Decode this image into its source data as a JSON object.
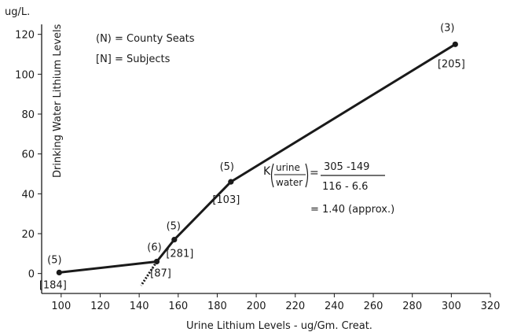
{
  "chart_data": {
    "type": "line",
    "title": "",
    "xlabel": "Urine Lithium Levels - ug/Gm. Creat.",
    "ylabel": "Drinking Water Lithium Levels",
    "y_unit": "ug/L.",
    "xlim": [
      90,
      320
    ],
    "ylim": [
      -10,
      125
    ],
    "x_ticks": [
      100,
      120,
      140,
      160,
      180,
      200,
      220,
      240,
      260,
      280,
      300,
      320
    ],
    "y_ticks": [
      0,
      20,
      40,
      60,
      80,
      100,
      120
    ],
    "grid": false,
    "series": [
      {
        "points": [
          {
            "x": 99,
            "y": 0.5,
            "county_seats": "(5)",
            "subjects": "[184]"
          },
          {
            "x": 149,
            "y": 6,
            "county_seats": "(6)",
            "subjects": "[87]"
          },
          {
            "x": 158,
            "y": 17,
            "county_seats": "(5)",
            "subjects": "[281]"
          },
          {
            "x": 187,
            "y": 46,
            "county_seats": "(5)",
            "subjects": "[103]"
          },
          {
            "x": 302,
            "y": 115,
            "county_seats": "(3)",
            "subjects": "[205]"
          }
        ]
      }
    ],
    "extrapolation": [
      {
        "x": 149,
        "y": 6
      },
      {
        "x": 141,
        "y": -6
      }
    ],
    "legend": {
      "placement": "top-left",
      "items": [
        "(N) = County Seats",
        "[N] = Subjects"
      ]
    },
    "annotation": {
      "k_prefix": "K",
      "k_fraction_top": "urine",
      "k_fraction_bottom": "water",
      "eq": "=",
      "numerator": "305 -149",
      "denominator": "116 - 6.6",
      "result": "= 1.40 (approx.)"
    }
  }
}
